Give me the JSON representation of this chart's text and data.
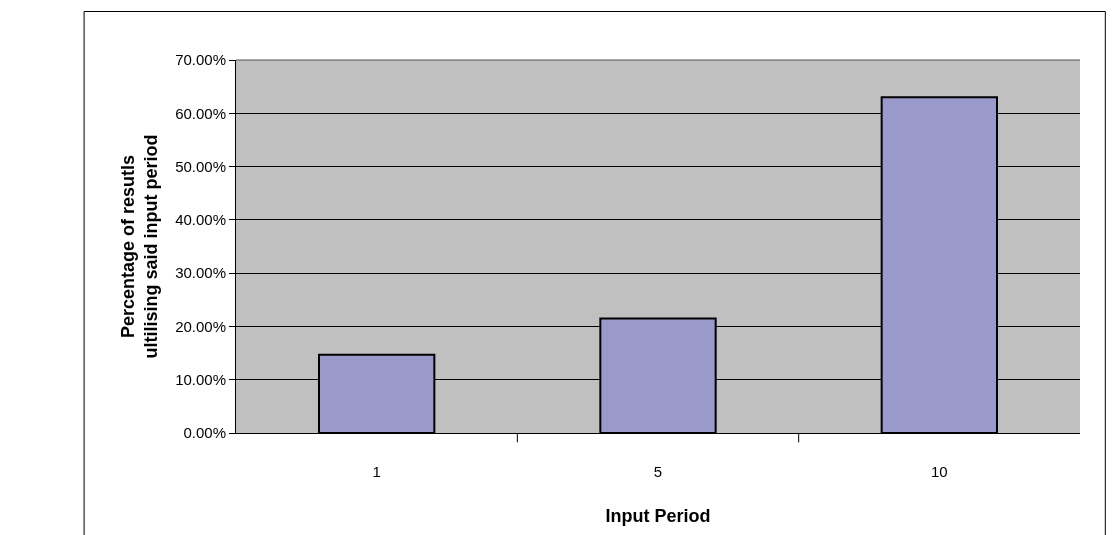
{
  "chart_data": {
    "type": "bar",
    "xlabel": "Input Period",
    "ylabel": "Percentage of resutls\nultilising said input period",
    "categories": [
      "1",
      "5",
      "10"
    ],
    "values": [
      14.7,
      21.5,
      63.0
    ],
    "color": "#9999cc",
    "ylim": [
      0,
      70
    ],
    "yticks": [
      {
        "value": 0,
        "label": "0.00%"
      },
      {
        "value": 10,
        "label": "10.00%"
      },
      {
        "value": 20,
        "label": "20.00%"
      },
      {
        "value": 30,
        "label": "30.00%"
      },
      {
        "value": 40,
        "label": "40.00%"
      },
      {
        "value": 50,
        "label": "50.00%"
      },
      {
        "value": 60,
        "label": "60.00%"
      },
      {
        "value": 70,
        "label": "70.00%"
      }
    ],
    "grid": "y"
  }
}
